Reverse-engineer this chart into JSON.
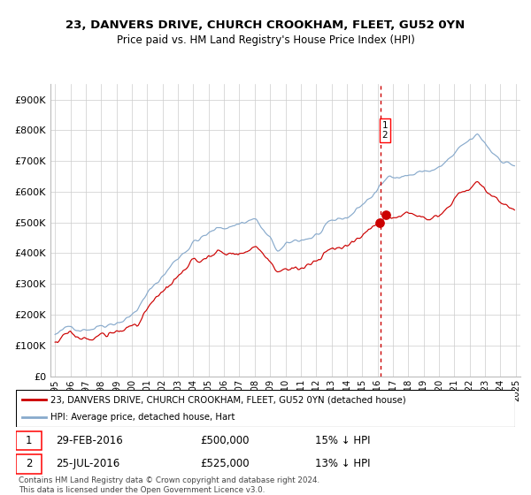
{
  "title": "23, DANVERS DRIVE, CHURCH CROOKHAM, FLEET, GU52 0YN",
  "subtitle": "Price paid vs. HM Land Registry's House Price Index (HPI)",
  "legend_label_red": "23, DANVERS DRIVE, CHURCH CROOKHAM, FLEET, GU52 0YN (detached house)",
  "legend_label_blue": "HPI: Average price, detached house, Hart",
  "transaction1_date": "29-FEB-2016",
  "transaction1_price": 500000,
  "transaction1_pct": "15% ↓ HPI",
  "transaction2_date": "25-JUL-2016",
  "transaction2_price": 525000,
  "transaction2_pct": "13% ↓ HPI",
  "red_color": "#cc0000",
  "blue_color": "#88aacc",
  "vline_color": "#cc0000",
  "grid_color": "#cccccc",
  "yticks": [
    0,
    100000,
    200000,
    300000,
    400000,
    500000,
    600000,
    700000,
    800000,
    900000
  ],
  "ytick_labels": [
    "£0",
    "£100K",
    "£200K",
    "£300K",
    "£400K",
    "£500K",
    "£600K",
    "£700K",
    "£800K",
    "£900K"
  ],
  "copyright_text": "Contains HM Land Registry data © Crown copyright and database right 2024.\nThis data is licensed under the Open Government Licence v3.0.",
  "xlim_start": 1994.7,
  "xlim_end": 2025.3,
  "ylim_min": 0,
  "ylim_max": 950000,
  "t1_year": 2016.12,
  "t2_year": 2016.54,
  "vline_x": 2016.2
}
